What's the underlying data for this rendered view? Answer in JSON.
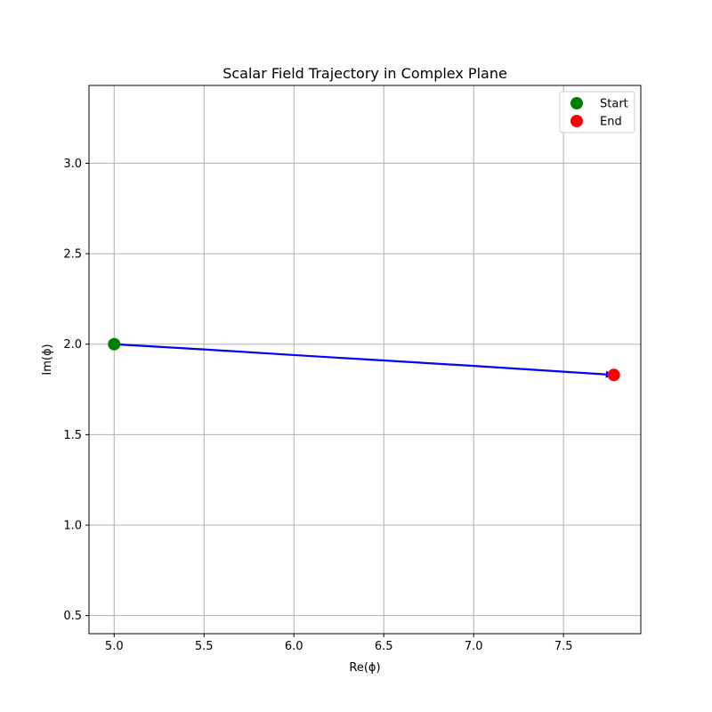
{
  "chart_data": {
    "type": "scatter",
    "title": "Scalar Field Trajectory in Complex Plane",
    "xlabel": "Re(ϕ)",
    "ylabel": "Im(ϕ)",
    "xlim": [
      4.86,
      7.93
    ],
    "ylim": [
      0.4,
      3.43
    ],
    "xticks": [
      5.0,
      5.5,
      6.0,
      6.5,
      7.0,
      7.5
    ],
    "xtick_labels": [
      "5.0",
      "5.5",
      "6.0",
      "6.5",
      "7.0",
      "7.5"
    ],
    "yticks": [
      0.5,
      1.0,
      1.5,
      2.0,
      2.5,
      3.0
    ],
    "ytick_labels": [
      "0.5",
      "1.0",
      "1.5",
      "2.0",
      "2.5",
      "3.0"
    ],
    "grid": true,
    "legend_position": "top-right",
    "trajectory": {
      "color": "#0000ff",
      "points": [
        {
          "x": 5.0,
          "y": 2.0
        },
        {
          "x": 5.5,
          "y": 1.971
        },
        {
          "x": 6.0,
          "y": 1.94
        },
        {
          "x": 6.5,
          "y": 1.91
        },
        {
          "x": 7.0,
          "y": 1.88
        },
        {
          "x": 7.5,
          "y": 1.848
        },
        {
          "x": 7.78,
          "y": 1.83
        }
      ]
    },
    "series": [
      {
        "name": "Start",
        "color": "#008000",
        "x": [
          5.0
        ],
        "y": [
          2.0
        ]
      },
      {
        "name": "End",
        "color": "#ff0000",
        "x": [
          7.78
        ],
        "y": [
          1.83
        ]
      }
    ]
  }
}
